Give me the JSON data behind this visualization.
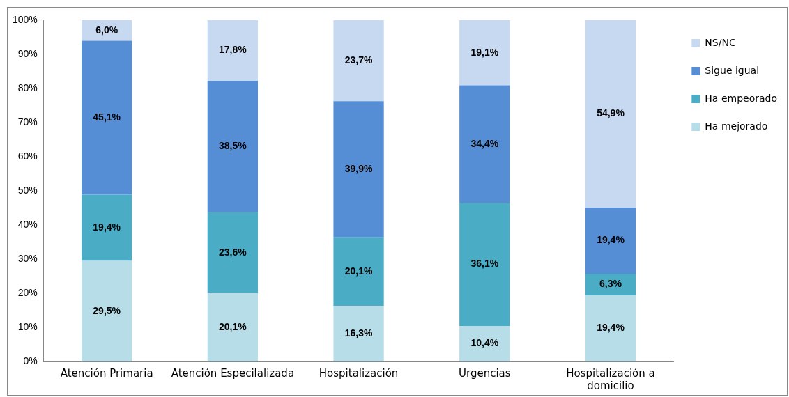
{
  "chart_data": {
    "type": "bar",
    "stacked": true,
    "categories": [
      "Atención Primaria",
      "Atención Especilalizada",
      "Hospitalización",
      "Urgencias",
      "Hospitalización a domicilio"
    ],
    "series": [
      {
        "name": "Ha mejorado",
        "color": "#b7dde8",
        "values": [
          29.5,
          20.1,
          16.3,
          10.4,
          19.4
        ],
        "value_labels": [
          "29,5%",
          "20,1%",
          "16,3%",
          "10,4%",
          "19,4%"
        ]
      },
      {
        "name": "Ha empeorado",
        "color": "#4bacc6",
        "values": [
          19.4,
          23.6,
          20.1,
          36.1,
          6.3
        ],
        "value_labels": [
          "19,4%",
          "23,6%",
          "20,1%",
          "36,1%",
          "6,3%"
        ]
      },
      {
        "name": "Sigue igual",
        "color": "#558ed5",
        "values": [
          45.1,
          38.5,
          39.9,
          34.4,
          19.4
        ],
        "value_labels": [
          "45,1%",
          "38,5%",
          "39,9%",
          "34,4%",
          "19,4%"
        ]
      },
      {
        "name": "NS/NC",
        "color": "#c6d9f0",
        "values": [
          6.0,
          17.8,
          23.7,
          19.1,
          54.9
        ],
        "value_labels": [
          "6,0%",
          "17,8%",
          "23,7%",
          "19,1%",
          "54,9%"
        ]
      }
    ],
    "ylim": [
      0,
      100
    ],
    "yticks": [
      {
        "value": 0,
        "label": "0%"
      },
      {
        "value": 10,
        "label": "10%"
      },
      {
        "value": 20,
        "label": "20%"
      },
      {
        "value": 30,
        "label": "30%"
      },
      {
        "value": 40,
        "label": "40%"
      },
      {
        "value": 50,
        "label": "50%"
      },
      {
        "value": 60,
        "label": "60%"
      },
      {
        "value": 70,
        "label": "70%"
      },
      {
        "value": 80,
        "label": "80%"
      },
      {
        "value": 90,
        "label": "90%"
      },
      {
        "value": 100,
        "label": "100%"
      }
    ],
    "grid": false,
    "legend": "right"
  }
}
